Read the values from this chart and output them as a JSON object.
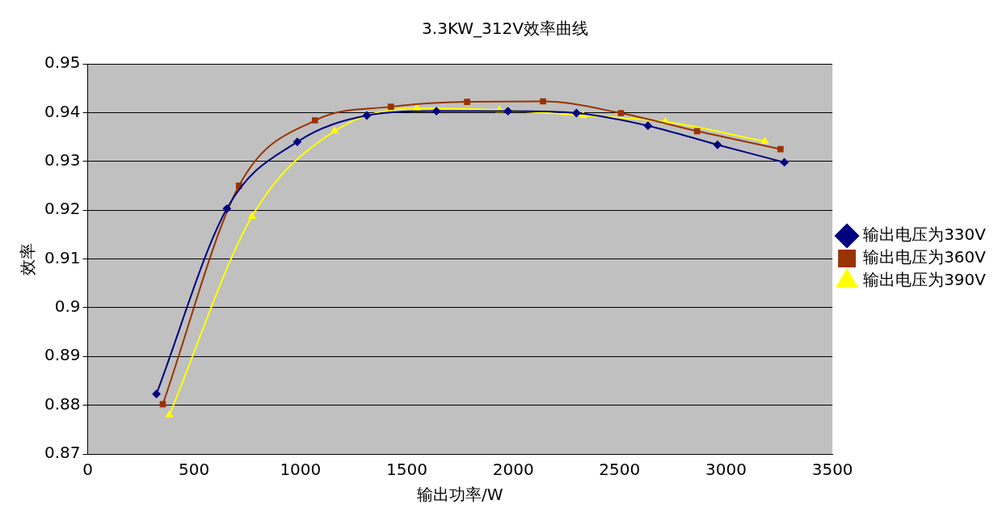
{
  "chart_data": {
    "type": "line",
    "title": "3.3KW_312V效率曲线",
    "xlabel": "输出功率/W",
    "ylabel": "效率",
    "xlim": [
      0,
      3500
    ],
    "xticks": [
      0,
      500,
      1000,
      1500,
      2000,
      2500,
      3000,
      3500
    ],
    "ylim": [
      0.87,
      0.95
    ],
    "yticks": [
      0.87,
      0.88,
      0.89,
      0.9,
      0.91,
      0.92,
      0.93,
      0.94,
      0.95
    ],
    "grid": "y",
    "legend": "right",
    "line_style": "solid",
    "series": [
      {
        "name": "输出电压为330V",
        "color": "#000080",
        "marker": "diamond",
        "x": [
          323,
          654,
          985,
          1312,
          1639,
          1975,
          2297,
          2633,
          2960,
          3274
        ],
        "values": [
          0.8823,
          0.9203,
          0.934,
          0.9394,
          0.9403,
          0.9403,
          0.9399,
          0.9373,
          0.9334,
          0.9298
        ]
      },
      {
        "name": "输出电压为360V",
        "color": "#993300",
        "marker": "square",
        "x": [
          353,
          711,
          1068,
          1425,
          1783,
          2140,
          2506,
          2864,
          3256
        ],
        "values": [
          0.8802,
          0.925,
          0.9384,
          0.9412,
          0.9422,
          0.9423,
          0.9399,
          0.9362,
          0.9325
        ]
      },
      {
        "name": "输出电压为390V",
        "color": "#ffff00",
        "marker": "triangle",
        "x": [
          384,
          772,
          1160,
          1547,
          1935,
          2328,
          2716,
          3182
        ],
        "values": [
          0.878,
          0.9187,
          0.9362,
          0.9409,
          0.9405,
          0.9394,
          0.9381,
          0.9341
        ]
      }
    ]
  }
}
